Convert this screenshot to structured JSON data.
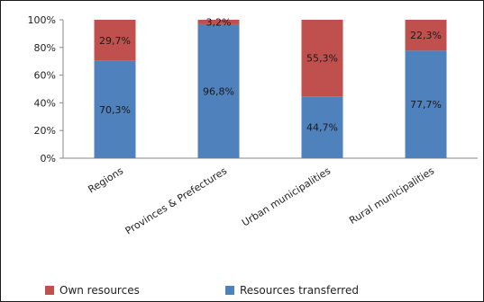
{
  "chart_data": {
    "type": "bar",
    "stacked": true,
    "percent": true,
    "categories": [
      "Regions",
      "Provinces & Prefectures",
      "Urban municipalities",
      "Rural municipalities"
    ],
    "series": [
      {
        "name": "Resources transferred",
        "color": "#4f81bd",
        "values": [
          70.3,
          96.8,
          44.7,
          77.7
        ],
        "labels": [
          "70,3%",
          "96,8%",
          "44,7%",
          "77,7%"
        ]
      },
      {
        "name": "Own resources",
        "color": "#c0504d",
        "values": [
          29.7,
          3.2,
          55.3,
          22.3
        ],
        "labels": [
          "29,7%",
          "3,2%",
          "55,3%",
          "22,3%"
        ]
      }
    ],
    "ylim": [
      0,
      100
    ],
    "yticks": [
      "0%",
      "20%",
      "40%",
      "60%",
      "80%",
      "100%"
    ],
    "grid": false,
    "legend_position": "bottom"
  },
  "legend": [
    {
      "label": "Own resources",
      "color": "#c0504d"
    },
    {
      "label": "Resources transferred",
      "color": "#4f81bd"
    }
  ]
}
